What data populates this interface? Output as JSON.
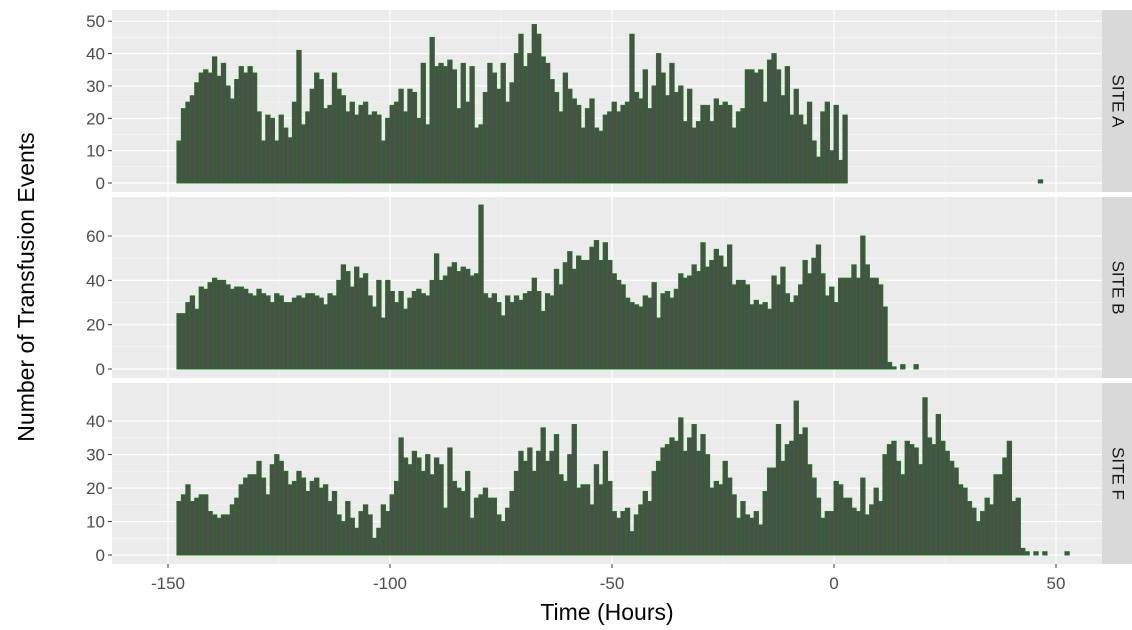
{
  "chart_data": {
    "type": "bar",
    "xlabel": "Time (Hours)",
    "ylabel": "Number of Transfusion Events",
    "xlim": [
      -150,
      60
    ],
    "x_ticks": [
      -150,
      -100,
      -50,
      0,
      50
    ],
    "x_tick_labels": [
      "-150",
      "-100",
      "-50",
      "0",
      "50"
    ],
    "bin_width": 1,
    "x_start": -148,
    "colors": {
      "bar_fill": "#4d4d4d",
      "bar_edge": "#1a7a1a",
      "panel_bg": "#ebebeb",
      "strip_bg": "#d9d9d9",
      "grid": "#ffffff"
    },
    "panels": [
      {
        "name": "SITE A",
        "ylim": [
          0,
          51
        ],
        "y_ticks": [
          0,
          10,
          20,
          30,
          40,
          50
        ],
        "values": [
          13,
          23,
          25,
          27,
          31,
          34,
          35,
          34,
          39,
          33,
          37,
          30,
          26,
          32,
          36,
          34,
          36,
          34,
          22,
          13,
          21,
          20,
          13,
          21,
          17,
          14,
          25,
          41,
          18,
          22,
          29,
          34,
          32,
          23,
          24,
          34,
          29,
          27,
          22,
          25,
          21,
          24,
          25,
          21,
          22,
          21,
          13,
          20,
          24,
          25,
          29,
          22,
          29,
          28,
          20,
          37,
          18,
          45,
          36,
          37,
          36,
          38,
          35,
          23,
          37,
          25,
          36,
          17,
          18,
          28,
          37,
          34,
          29,
          37,
          25,
          31,
          40,
          46,
          36,
          40,
          49,
          46,
          39,
          37,
          32,
          28,
          22,
          34,
          29,
          26,
          24,
          17,
          23,
          26,
          17,
          16,
          21,
          22,
          25,
          22,
          24,
          25,
          46,
          28,
          26,
          35,
          23,
          30,
          40,
          34,
          27,
          37,
          28,
          30,
          19,
          29,
          17,
          19,
          24,
          24,
          19,
          26,
          24,
          25,
          24,
          17,
          22,
          23,
          35,
          35,
          34,
          35,
          25,
          38,
          40,
          35,
          27,
          36,
          21,
          29,
          21,
          18,
          25,
          13,
          8,
          22,
          25,
          10,
          24,
          7,
          21,
          0,
          0,
          0,
          0,
          0,
          0,
          0,
          0,
          0,
          0,
          0,
          0,
          0,
          0,
          0,
          0,
          0,
          0,
          0,
          0,
          0,
          0,
          0,
          0,
          0,
          0,
          0,
          0,
          0,
          0,
          0,
          0,
          0,
          0,
          0,
          0,
          0,
          0,
          0,
          0,
          0,
          0,
          0,
          1,
          0,
          0,
          0,
          0,
          0,
          0,
          0,
          0,
          0,
          0,
          0,
          0,
          0,
          0,
          0,
          0,
          0,
          0,
          0,
          0,
          0,
          0,
          0,
          0,
          0,
          0,
          0,
          0,
          0,
          0,
          0,
          0,
          0,
          0,
          0,
          0,
          0,
          0,
          0
        ]
      },
      {
        "name": "SITE B",
        "ylim": [
          0,
          74
        ],
        "y_ticks": [
          0,
          20,
          40,
          60
        ],
        "values": [
          25,
          25,
          30,
          33,
          27,
          37,
          36,
          39,
          41,
          40,
          40,
          38,
          36,
          37,
          37,
          36,
          34,
          33,
          36,
          34,
          33,
          30,
          34,
          33,
          30,
          30,
          32,
          33,
          32,
          34,
          34,
          33,
          32,
          29,
          34,
          33,
          40,
          47,
          44,
          37,
          46,
          41,
          43,
          33,
          28,
          40,
          23,
          40,
          35,
          30,
          35,
          27,
          32,
          35,
          36,
          34,
          33,
          40,
          52,
          40,
          42,
          46,
          48,
          44,
          46,
          45,
          42,
          43,
          74,
          34,
          32,
          34,
          30,
          24,
          33,
          30,
          33,
          31,
          34,
          35,
          41,
          35,
          26,
          34,
          33,
          45,
          38,
          48,
          53,
          45,
          51,
          49,
          49,
          55,
          58,
          49,
          57,
          49,
          43,
          40,
          38,
          32,
          30,
          29,
          28,
          33,
          32,
          39,
          23,
          34,
          35,
          32,
          36,
          43,
          41,
          42,
          47,
          44,
          57,
          46,
          49,
          54,
          51,
          46,
          56,
          38,
          40,
          40,
          38,
          29,
          31,
          29,
          30,
          27,
          42,
          38,
          46,
          34,
          30,
          33,
          38,
          49,
          43,
          50,
          56,
          43,
          33,
          37,
          30,
          41,
          41,
          41,
          47,
          41,
          60,
          47,
          41,
          41,
          38,
          28,
          3,
          1,
          0,
          2,
          0,
          0,
          2,
          0,
          0,
          0,
          0,
          0,
          0,
          0,
          0,
          0,
          0,
          0,
          0,
          0,
          0,
          0,
          0,
          0,
          0,
          0,
          0,
          0,
          0,
          0,
          0,
          0,
          0,
          0,
          0,
          0,
          0,
          0,
          0,
          0,
          0,
          0,
          0,
          0,
          0,
          0,
          0,
          0,
          0,
          0,
          0,
          0,
          0,
          0,
          0,
          0,
          0,
          0,
          0,
          0,
          0,
          0,
          0,
          0,
          0,
          0,
          0,
          0,
          0,
          0,
          0,
          0,
          0,
          0,
          0
        ]
      },
      {
        "name": "SITE F",
        "ylim": [
          0,
          49
        ],
        "y_ticks": [
          0,
          10,
          20,
          30,
          40
        ],
        "values": [
          16,
          18,
          21,
          16,
          17,
          18,
          18,
          13,
          12,
          11,
          12,
          12,
          15,
          17,
          21,
          23,
          24,
          24,
          28,
          23,
          18,
          27,
          30,
          28,
          25,
          21,
          22,
          25,
          23,
          19,
          22,
          23,
          20,
          21,
          16,
          19,
          12,
          10,
          16,
          11,
          8,
          13,
          15,
          12,
          5,
          8,
          15,
          13,
          18,
          22,
          35,
          29,
          27,
          31,
          29,
          25,
          30,
          24,
          29,
          27,
          14,
          32,
          22,
          20,
          19,
          25,
          11,
          17,
          18,
          20,
          17,
          17,
          12,
          10,
          14,
          19,
          25,
          31,
          28,
          32,
          25,
          31,
          38,
          28,
          31,
          36,
          24,
          22,
          30,
          39,
          20,
          21,
          21,
          15,
          27,
          21,
          31,
          22,
          13,
          11,
          13,
          14,
          7,
          12,
          15,
          19,
          16,
          25,
          28,
          32,
          33,
          35,
          34,
          41,
          31,
          35,
          39,
          31,
          36,
          30,
          20,
          22,
          21,
          28,
          23,
          18,
          11,
          16,
          12,
          11,
          13,
          9,
          19,
          26,
          26,
          39,
          28,
          33,
          34,
          46,
          36,
          38,
          27,
          23,
          17,
          11,
          13,
          13,
          22,
          21,
          17,
          17,
          14,
          13,
          23,
          12,
          15,
          20,
          16,
          30,
          33,
          34,
          28,
          24,
          34,
          33,
          32,
          27,
          47,
          35,
          33,
          42,
          34,
          31,
          28,
          26,
          21,
          20,
          16,
          14,
          10,
          13,
          17,
          15,
          24,
          24,
          29,
          34,
          16,
          17,
          2,
          1,
          0,
          1,
          0,
          1,
          0,
          0,
          0,
          0,
          1,
          0,
          0,
          0,
          0,
          0,
          0,
          0,
          0,
          0,
          0,
          0,
          0,
          0,
          0,
          0,
          0,
          0,
          0,
          0,
          0,
          0,
          0,
          0,
          0
        ]
      }
    ]
  }
}
